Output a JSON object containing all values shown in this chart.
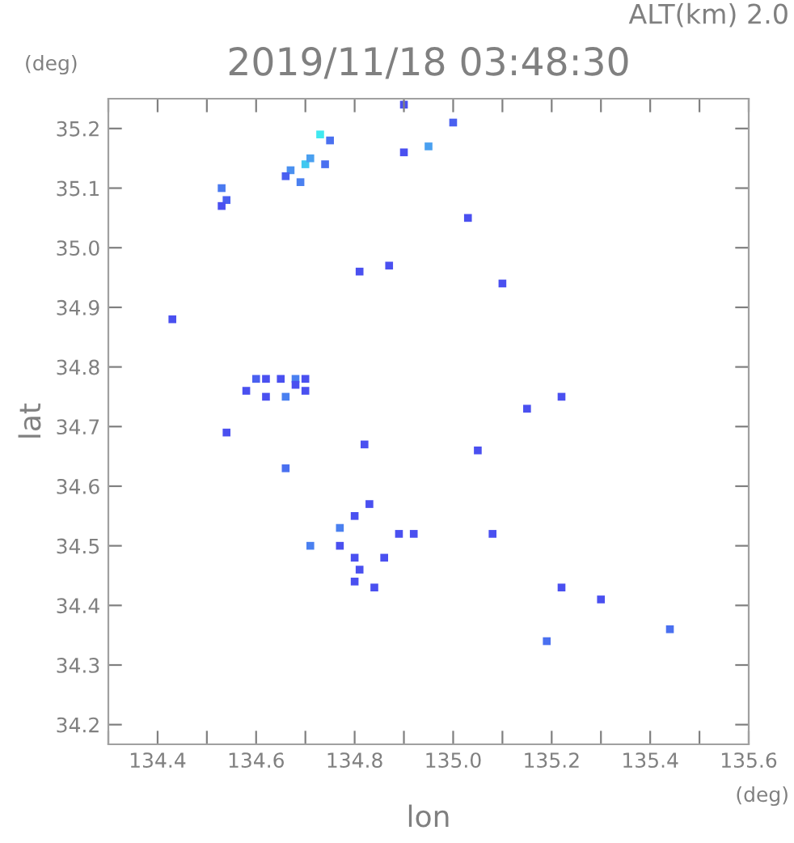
{
  "chart_data": {
    "type": "scatter",
    "title": "2019/11/18 03:48:30",
    "xlabel": "lon",
    "ylabel": "lat",
    "annotations": [
      "ALT(km) 2.0",
      "(deg)",
      "(deg)"
    ],
    "x": [
      134.53,
      134.54,
      134.53,
      134.67,
      134.7,
      134.73,
      134.71,
      134.66,
      134.69,
      134.74,
      134.75,
      134.9,
      135.0,
      134.9,
      134.95,
      135.03,
      134.81,
      134.87,
      134.43,
      135.1,
      135.22,
      134.58,
      134.6,
      134.62,
      134.62,
      134.65,
      134.68,
      134.68,
      134.66,
      134.7,
      134.7,
      134.54,
      134.66,
      134.82,
      135.05,
      135.15,
      134.77,
      134.8,
      134.8,
      134.77,
      134.83,
      134.71,
      134.89,
      134.92,
      134.86,
      134.81,
      134.8,
      134.84,
      135.08,
      135.22,
      135.3,
      135.19,
      135.44
    ],
    "series": [
      {
        "values": [
          35.1,
          35.08,
          35.07,
          35.13,
          35.14,
          35.19,
          35.15,
          35.12,
          35.11,
          35.14,
          35.18,
          35.24,
          35.21,
          35.16,
          35.17,
          35.05,
          34.96,
          34.97,
          34.88,
          34.94,
          34.75,
          34.76,
          34.78,
          34.78,
          34.75,
          34.78,
          34.78,
          34.77,
          34.75,
          34.78,
          34.76,
          34.69,
          34.63,
          34.67,
          34.66,
          34.73,
          34.5,
          34.55,
          34.48,
          34.53,
          34.57,
          34.5,
          34.52,
          34.52,
          34.48,
          34.46,
          34.44,
          34.43,
          34.52,
          34.43,
          34.41,
          34.34,
          34.36
        ],
        "colors": [
          "#4a7af0",
          "#4a60f0",
          "#4a50f0",
          "#4a90f0",
          "#40c8f0",
          "#40e8f0",
          "#4aa0f0",
          "#4a60f0",
          "#4a80f0",
          "#4a70f0",
          "#4a70f0",
          "#4a50f0",
          "#4a60f0",
          "#4a50f0",
          "#4aa0f0",
          "#4a50f0",
          "#4a50f0",
          "#4a50f0",
          "#4a50f0",
          "#4a50f0",
          "#4a50f0",
          "#4a50f0",
          "#4a60f0",
          "#4a50f0",
          "#4a50f0",
          "#4a50f0",
          "#4a80f0",
          "#4a50f0",
          "#4a80f0",
          "#4a50f0",
          "#4a50f0",
          "#4a50f0",
          "#4a70f0",
          "#4a50f0",
          "#4a50f0",
          "#4a50f0",
          "#4a50f0",
          "#4a50f0",
          "#4a50f0",
          "#4a80f0",
          "#4a50f0",
          "#4a80f0",
          "#4a50f0",
          "#4a50f0",
          "#4a50f0",
          "#4a50f0",
          "#4a50f0",
          "#4a50f0",
          "#4a50f0",
          "#4a50f0",
          "#4a50f0",
          "#4a70f0",
          "#4a70f0"
        ]
      }
    ],
    "xlim": [
      134.3,
      135.6
    ],
    "ylim": [
      34.167,
      35.25
    ],
    "xticks": [
      {
        "value": 134.3,
        "label": null
      },
      134.4,
      {
        "value": 134.5,
        "label": null
      },
      134.6,
      {
        "value": 134.7,
        "label": null
      },
      134.8,
      {
        "value": 134.9,
        "label": null
      },
      {
        "value": 135.0,
        "label": "135.0"
      },
      {
        "value": 135.1,
        "label": null
      },
      135.2,
      {
        "value": 135.3,
        "label": null
      },
      135.4,
      {
        "value": 135.5,
        "label": null
      },
      135.6
    ],
    "yticks": [
      34.2,
      34.3,
      34.4,
      34.5,
      34.6,
      34.7,
      34.8,
      34.9,
      {
        "value": 35.0,
        "label": "35.0"
      },
      35.1,
      35.2
    ],
    "marker": "square",
    "grid": false,
    "legend": false
  }
}
